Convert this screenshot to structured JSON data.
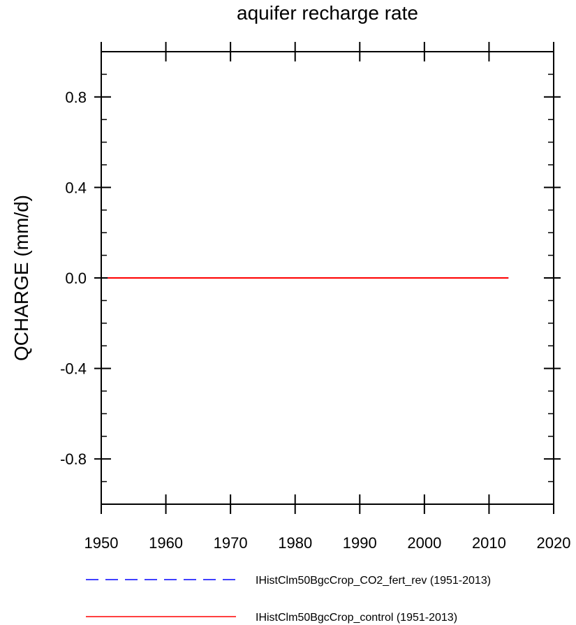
{
  "chart_data": {
    "type": "line",
    "title": "aquifer recharge rate",
    "xlabel": "",
    "ylabel": "QCHARGE  (mm/d)",
    "xlim": [
      1950,
      2020
    ],
    "ylim": [
      -1.0,
      1.0
    ],
    "x_ticks": [
      1950,
      1960,
      1970,
      1980,
      1990,
      2000,
      2010,
      2020
    ],
    "y_ticks": [
      -0.8,
      -0.4,
      0.0,
      0.4,
      0.8
    ],
    "y_tick_labels": [
      "-0.8",
      "-0.4",
      "0.0",
      "0.4",
      "0.8"
    ],
    "grid": false,
    "legend_position": "bottom",
    "series": [
      {
        "name": "IHistClm50BgcCrop_CO2_fert_rev (1951-2013)",
        "color": "#0000ff",
        "dash": "dashed",
        "x": [
          1951,
          2013
        ],
        "y": [
          0.0,
          0.0
        ]
      },
      {
        "name": "IHistClm50BgcCrop_control (1951-2013)",
        "color": "#ff0000",
        "dash": "solid",
        "x": [
          1951,
          2013
        ],
        "y": [
          0.0,
          0.0
        ]
      }
    ]
  }
}
